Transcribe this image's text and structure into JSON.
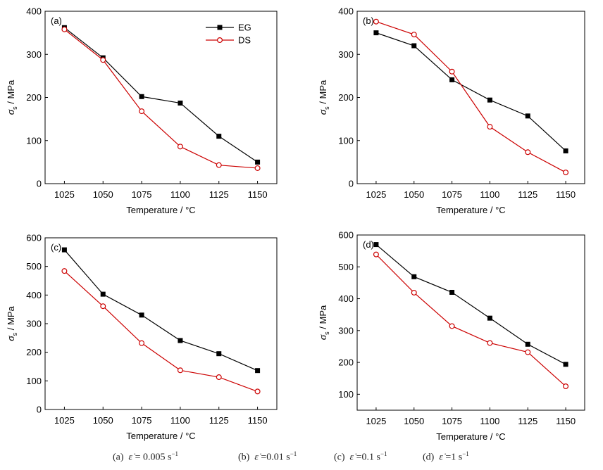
{
  "legend": {
    "eg_label": "EG",
    "ds_label": "DS"
  },
  "colors": {
    "eg": "#000000",
    "ds": "#cc0000"
  },
  "y_label_main": "σ",
  "y_label_sub": "s",
  "y_label_unit": " / MPa",
  "x_label": "Temperature / °C",
  "caption": [
    {
      "tag": "(a)",
      "value": "0.005"
    },
    {
      "tag": "(b)",
      "value": "0.01"
    },
    {
      "tag": "(c)",
      "value": "0.1"
    },
    {
      "tag": "(d)",
      "value": "1"
    }
  ],
  "caption_symbol": "ε̇",
  "caption_unit": "s",
  "caption_unit_exp": "−1",
  "chart_data": [
    {
      "type": "line",
      "panel_label": "(a)",
      "x": [
        1025,
        1050,
        1075,
        1100,
        1125,
        1150
      ],
      "ylim": [
        0,
        400
      ],
      "yticks": [
        0,
        100,
        200,
        300,
        400
      ],
      "legend_position": "top-right",
      "series": [
        {
          "name": "EG",
          "marker": "filled-square",
          "values": [
            362,
            292,
            202,
            187,
            110,
            50
          ]
        },
        {
          "name": "DS",
          "marker": "open-circle",
          "values": [
            358,
            287,
            168,
            86,
            43,
            36
          ]
        }
      ]
    },
    {
      "type": "line",
      "panel_label": "(b)",
      "x": [
        1025,
        1050,
        1075,
        1100,
        1125,
        1150
      ],
      "ylim": [
        0,
        400
      ],
      "yticks": [
        0,
        100,
        200,
        300,
        400
      ],
      "series": [
        {
          "name": "EG",
          "marker": "filled-square",
          "values": [
            350,
            320,
            241,
            194,
            157,
            76
          ]
        },
        {
          "name": "DS",
          "marker": "open-circle",
          "values": [
            376,
            346,
            260,
            132,
            73,
            26
          ]
        }
      ]
    },
    {
      "type": "line",
      "panel_label": "(c)",
      "x": [
        1025,
        1050,
        1075,
        1100,
        1125,
        1150
      ],
      "ylim": [
        0,
        600
      ],
      "yticks": [
        0,
        100,
        200,
        300,
        400,
        500,
        600
      ],
      "series": [
        {
          "name": "EG",
          "marker": "filled-square",
          "values": [
            558,
            403,
            330,
            241,
            195,
            136
          ]
        },
        {
          "name": "DS",
          "marker": "open-circle",
          "values": [
            484,
            361,
            232,
            137,
            113,
            63
          ]
        }
      ]
    },
    {
      "type": "line",
      "panel_label": "(d)",
      "x": [
        1025,
        1050,
        1075,
        1100,
        1125,
        1150
      ],
      "ylim": [
        50,
        600
      ],
      "yticks": [
        100,
        200,
        300,
        400,
        500,
        600
      ],
      "series": [
        {
          "name": "EG",
          "marker": "filled-square",
          "values": [
            570,
            469,
            420,
            339,
            257,
            194
          ]
        },
        {
          "name": "DS",
          "marker": "open-circle",
          "values": [
            539,
            419,
            314,
            261,
            232,
            125
          ]
        }
      ]
    }
  ]
}
